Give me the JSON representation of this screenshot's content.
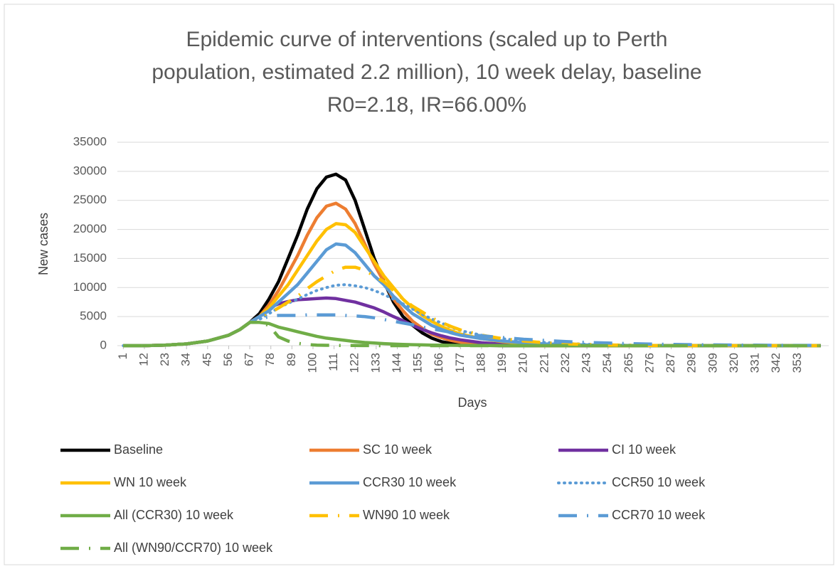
{
  "chart_data": {
    "type": "line",
    "title": [
      "Epidemic curve of interventions (scaled up to Perth",
      "population, estimated 2.2 million), 10 week delay, baseline",
      "R0=2.18, IR=66.00%"
    ],
    "x_label": "Days",
    "y_label": "New cases",
    "x": [
      1,
      12,
      23,
      34,
      45,
      56,
      62,
      67,
      72,
      77,
      82,
      87,
      92,
      97,
      102,
      107,
      112,
      117,
      122,
      127,
      132,
      137,
      142,
      147,
      152,
      157,
      162,
      167,
      172,
      177,
      188,
      199,
      210,
      221,
      232,
      243,
      254,
      265,
      276,
      287,
      298,
      309,
      320,
      331,
      342,
      353,
      365
    ],
    "xlim": [
      0.5,
      365.5
    ],
    "xticks": [
      1,
      12,
      23,
      34,
      45,
      56,
      67,
      78,
      89,
      100,
      111,
      122,
      133,
      144,
      155,
      166,
      177,
      188,
      199,
      210,
      221,
      232,
      243,
      254,
      265,
      276,
      287,
      298,
      309,
      320,
      331,
      342,
      353
    ],
    "ylim": [
      0,
      35000
    ],
    "yticks": [
      0,
      5000,
      10000,
      15000,
      20000,
      25000,
      30000,
      35000
    ],
    "grid": true,
    "series": [
      {
        "name": "Baseline",
        "color": "#000000",
        "style": "solid",
        "values": [
          0,
          0,
          100,
          300,
          800,
          1800,
          2800,
          4000,
          5500,
          8000,
          11000,
          15000,
          19000,
          23500,
          27000,
          29000,
          29500,
          28500,
          25000,
          20000,
          15000,
          11000,
          7500,
          5000,
          3500,
          2200,
          1300,
          700,
          400,
          200,
          50,
          0,
          0,
          0,
          0,
          0,
          0,
          0,
          0,
          0,
          0,
          0,
          0,
          0,
          0,
          0,
          0
        ]
      },
      {
        "name": "SC 10 week",
        "color": "#ed7d31",
        "style": "solid",
        "values": [
          0,
          0,
          100,
          300,
          800,
          1800,
          2800,
          4000,
          5000,
          7000,
          9500,
          12500,
          15500,
          19000,
          22000,
          24000,
          24500,
          23500,
          21000,
          17500,
          14000,
          11000,
          8000,
          6000,
          4200,
          3000,
          2000,
          1400,
          900,
          600,
          250,
          100,
          50,
          0,
          0,
          0,
          0,
          0,
          0,
          0,
          0,
          0,
          0,
          0,
          0,
          0,
          0
        ]
      },
      {
        "name": "CI 10 week",
        "color": "#7030a0",
        "style": "solid",
        "values": [
          0,
          0,
          100,
          300,
          800,
          1800,
          2800,
          4000,
          5000,
          6500,
          7200,
          7600,
          7900,
          8000,
          8100,
          8200,
          8100,
          7800,
          7500,
          7000,
          6500,
          5800,
          5000,
          4300,
          3500,
          2800,
          2200,
          1700,
          1300,
          1000,
          500,
          250,
          120,
          60,
          30,
          0,
          0,
          0,
          0,
          0,
          0,
          0,
          0,
          0,
          0,
          0,
          0
        ]
      },
      {
        "name": "WN 10 week",
        "color": "#ffc000",
        "style": "solid",
        "values": [
          0,
          0,
          100,
          300,
          800,
          1800,
          2800,
          4000,
          5000,
          6500,
          8500,
          10500,
          13000,
          15500,
          18000,
          20000,
          21000,
          20800,
          19500,
          17000,
          14500,
          12000,
          10000,
          8000,
          6500,
          5200,
          4200,
          3300,
          2600,
          2000,
          1200,
          700,
          400,
          200,
          100,
          50,
          0,
          0,
          0,
          0,
          0,
          0,
          0,
          0,
          0,
          0,
          0
        ]
      },
      {
        "name": "CCR30 10 week",
        "color": "#5b9bd5",
        "style": "solid",
        "values": [
          0,
          0,
          100,
          300,
          800,
          1800,
          2800,
          4000,
          5000,
          6000,
          7500,
          9000,
          10500,
          12500,
          14500,
          16500,
          17500,
          17300,
          16000,
          14000,
          12000,
          10500,
          8500,
          7000,
          5500,
          4500,
          3500,
          2800,
          2200,
          1800,
          1200,
          800,
          500,
          300,
          200,
          120,
          60,
          30,
          0,
          0,
          0,
          0,
          0,
          0,
          0,
          0,
          0
        ]
      },
      {
        "name": "CCR50 10 week",
        "color": "#5b9bd5",
        "style": "dotted",
        "values": [
          0,
          0,
          100,
          300,
          800,
          1800,
          2800,
          4000,
          4500,
          5500,
          6500,
          7300,
          8000,
          8800,
          9500,
          10000,
          10400,
          10500,
          10300,
          10000,
          9500,
          8800,
          8000,
          7200,
          6300,
          5400,
          4600,
          3900,
          3200,
          2600,
          1800,
          1200,
          800,
          550,
          380,
          250,
          160,
          100,
          60,
          30,
          15,
          0,
          0,
          0,
          0,
          0,
          0
        ]
      },
      {
        "name": "All (CCR30) 10 week",
        "color": "#70ad47",
        "style": "solid",
        "values": [
          0,
          0,
          100,
          300,
          800,
          1800,
          2800,
          4000,
          4000,
          3800,
          3200,
          2800,
          2400,
          2000,
          1600,
          1300,
          1100,
          900,
          700,
          550,
          450,
          350,
          280,
          220,
          170,
          130,
          100,
          80,
          60,
          50,
          30,
          15,
          0,
          0,
          0,
          0,
          0,
          0,
          0,
          0,
          0,
          0,
          0,
          0,
          0,
          0,
          0
        ]
      },
      {
        "name": "WN90 10 week",
        "color": "#ffc000",
        "style": "dashdot",
        "values": [
          0,
          0,
          100,
          300,
          800,
          1800,
          2800,
          4000,
          4500,
          5500,
          6500,
          7500,
          8500,
          9800,
          11000,
          12000,
          13000,
          13500,
          13500,
          13000,
          12000,
          11000,
          9500,
          8000,
          6800,
          5800,
          4800,
          4000,
          3300,
          2700,
          1800,
          1200,
          800,
          500,
          320,
          200,
          120,
          70,
          40,
          0,
          0,
          0,
          0,
          0,
          0,
          0,
          0
        ]
      },
      {
        "name": "CCR70 10 week",
        "color": "#5b9bd5",
        "style": "dashdot",
        "values": [
          0,
          0,
          100,
          300,
          800,
          1800,
          2800,
          4000,
          4500,
          5000,
          5200,
          5200,
          5200,
          5300,
          5300,
          5300,
          5300,
          5200,
          5100,
          5000,
          4800,
          4500,
          4200,
          3900,
          3600,
          3200,
          2900,
          2600,
          2300,
          2100,
          1700,
          1400,
          1100,
          900,
          700,
          550,
          450,
          350,
          280,
          220,
          170,
          130,
          100,
          80,
          60,
          45,
          35
        ]
      },
      {
        "name": "All (WN90/CCR70) 10 week",
        "color": "#70ad47",
        "style": "dashdot",
        "values": [
          0,
          0,
          100,
          300,
          800,
          1800,
          2800,
          4000,
          4000,
          3500,
          1500,
          800,
          400,
          200,
          100,
          60,
          40,
          30,
          20,
          15,
          10,
          5,
          0,
          0,
          0,
          0,
          0,
          0,
          0,
          0,
          0,
          0,
          0,
          0,
          0,
          0,
          0,
          0,
          0,
          0,
          0,
          0,
          0,
          0,
          0,
          0,
          0
        ]
      }
    ]
  }
}
